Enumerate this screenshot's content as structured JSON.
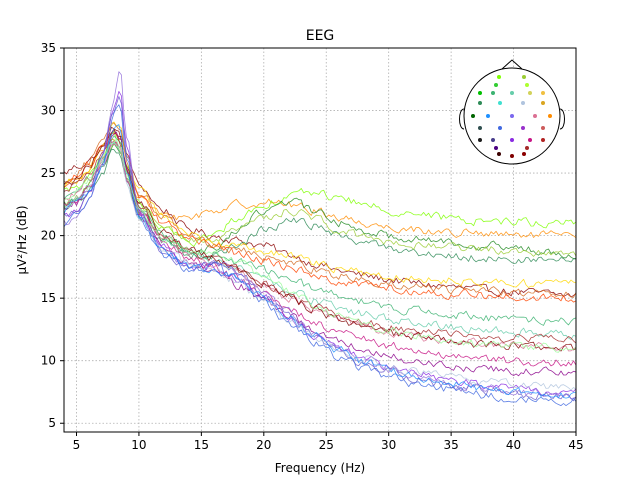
{
  "chart_data": {
    "type": "line",
    "title": "EEG",
    "xlabel": "Frequency (Hz)",
    "ylabel": "µV²/Hz (dB)",
    "xlim": [
      4,
      45
    ],
    "ylim": [
      4.3,
      35
    ],
    "xticks": [
      5,
      10,
      15,
      20,
      25,
      30,
      35,
      40,
      45
    ],
    "yticks": [
      5,
      10,
      15,
      20,
      25,
      30,
      35
    ],
    "grid": true,
    "x_shared": [
      4,
      5,
      6,
      7,
      8,
      8.5,
      9,
      10,
      12,
      14,
      16,
      18,
      20,
      22,
      24,
      26,
      28,
      30,
      32,
      34,
      36,
      38,
      40,
      42,
      45
    ],
    "series": [
      {
        "color": "#8B0000",
        "values": [
          25,
          25.5,
          26,
          27,
          28.5,
          28,
          26.5,
          24,
          22,
          20.5,
          20,
          19.6,
          19.2,
          18.5,
          17.8,
          17.2,
          16.8,
          16.5,
          16.2,
          16,
          15.8,
          15.6,
          15.5,
          15.4,
          15.2
        ]
      },
      {
        "color": "#FF8C00",
        "values": [
          24,
          24.5,
          25,
          26.5,
          28,
          27.5,
          25.5,
          23,
          21.5,
          21.5,
          22,
          22.5,
          22.7,
          22.5,
          22,
          21.5,
          21,
          20.7,
          20.5,
          20.3,
          20.2,
          20.1,
          20,
          20,
          20
        ]
      },
      {
        "color": "#7FFF00",
        "values": [
          23.5,
          24,
          24.8,
          26,
          28,
          27.5,
          25.5,
          22.5,
          20.5,
          19.5,
          20,
          21.5,
          22.5,
          23.2,
          23.5,
          23,
          22.5,
          22,
          21.8,
          21.5,
          21.2,
          21.2,
          21.2,
          21,
          21
        ]
      },
      {
        "color": "#228B22",
        "values": [
          22.5,
          23,
          24,
          25.5,
          27.5,
          27,
          24.5,
          22,
          20,
          18.8,
          19,
          20.5,
          22,
          22.8,
          22,
          21,
          20.5,
          20,
          19.8,
          19.6,
          19.4,
          19.2,
          19,
          18.8,
          18.6
        ]
      },
      {
        "color": "#2E8B57",
        "values": [
          22,
          22.5,
          23.5,
          25,
          27,
          26.5,
          24.5,
          21.5,
          19.5,
          18.5,
          18.5,
          19.2,
          20.5,
          21.2,
          20.8,
          20,
          19.5,
          19,
          18.7,
          18.5,
          18.3,
          18.2,
          18.1,
          18,
          18
        ]
      },
      {
        "color": "#9ACD32",
        "values": [
          22.5,
          23,
          24,
          25.5,
          27.5,
          27,
          25,
          22.5,
          20.5,
          19.5,
          19.5,
          20.5,
          21.5,
          22,
          21.5,
          20.5,
          20,
          19.6,
          19.3,
          19.2,
          19,
          18.9,
          18.8,
          18.7,
          18.6
        ]
      },
      {
        "color": "#FFD700",
        "values": [
          24,
          24.5,
          25.5,
          27,
          29,
          28.5,
          26,
          23.5,
          21.5,
          20,
          19.5,
          19.2,
          18.8,
          18.3,
          17.8,
          17.3,
          17,
          16.8,
          16.6,
          16.5,
          16.4,
          16.3,
          16.2,
          16.2,
          16.2
        ]
      },
      {
        "color": "#D2691E",
        "values": [
          24.5,
          25,
          26,
          27.5,
          29,
          28.5,
          26,
          23.5,
          21.5,
          20,
          19.3,
          18.8,
          18.3,
          17.8,
          17.3,
          16.8,
          16.5,
          16.2,
          16,
          15.8,
          15.6,
          15.5,
          15.4,
          15.4,
          15.3
        ]
      },
      {
        "color": "#FF4500",
        "values": [
          24,
          24.8,
          25.8,
          27,
          28.5,
          28,
          25.5,
          23,
          21,
          19.8,
          19.2,
          18.6,
          18,
          17.4,
          16.9,
          16.4,
          16,
          15.8,
          15.6,
          15.4,
          15.3,
          15.2,
          15.1,
          15,
          15
        ]
      },
      {
        "color": "#3CB371",
        "values": [
          23,
          23.5,
          24.5,
          26,
          27.8,
          27.5,
          25,
          22.3,
          20,
          18.8,
          18.3,
          17.8,
          17.2,
          16.5,
          15.8,
          15.2,
          14.7,
          14.3,
          14,
          13.8,
          13.6,
          13.4,
          13.3,
          13.2,
          13.1
        ]
      },
      {
        "color": "#66CDAA",
        "values": [
          22.5,
          23,
          24,
          25.5,
          27.5,
          27,
          24.5,
          21.8,
          19.5,
          18.5,
          18,
          17.3,
          16.5,
          15.6,
          14.8,
          14.2,
          13.7,
          13.3,
          13,
          12.8,
          12.6,
          12.4,
          12.3,
          12.2,
          12.1
        ]
      },
      {
        "color": "#DB7093",
        "values": [
          23,
          23.5,
          24.5,
          26,
          27.5,
          27,
          24.8,
          22,
          19.8,
          18.5,
          17.8,
          17,
          16,
          15,
          14,
          13.3,
          12.8,
          12.3,
          12,
          11.7,
          11.5,
          11.3,
          11.2,
          11.1,
          11
        ]
      },
      {
        "color": "#A52A2A",
        "values": [
          23.5,
          24,
          25,
          26.5,
          28,
          27.5,
          25,
          22.3,
          20,
          18.8,
          18,
          17.2,
          16.2,
          15.2,
          14.3,
          13.6,
          13.1,
          12.7,
          12.4,
          12.2,
          12,
          11.9,
          11.8,
          11.7,
          11.6
        ]
      },
      {
        "color": "#800000",
        "values": [
          24,
          24.5,
          25.5,
          27,
          28.5,
          28,
          25.5,
          22.6,
          20.2,
          19,
          18.2,
          17.3,
          16.2,
          15.1,
          14.1,
          13.3,
          12.7,
          12.2,
          11.9,
          11.6,
          11.4,
          11.2,
          11.1,
          11,
          10.9
        ]
      },
      {
        "color": "#C71585",
        "values": [
          22.5,
          23,
          24,
          25.5,
          27.5,
          27,
          24.5,
          21.8,
          19.5,
          18.2,
          17.5,
          16.5,
          15.3,
          14.1,
          13.1,
          12.3,
          11.7,
          11.2,
          10.8,
          10.5,
          10.3,
          10.1,
          10,
          9.9,
          9.8
        ]
      },
      {
        "color": "#8B008B",
        "values": [
          22,
          22.5,
          23.5,
          25.5,
          28.5,
          28,
          25,
          21.5,
          19,
          17.8,
          17,
          16,
          14.8,
          13.5,
          12.4,
          11.5,
          10.8,
          10.3,
          10,
          9.7,
          9.5,
          9.3,
          9.2,
          9.1,
          9
        ]
      },
      {
        "color": "#8A2BE2",
        "values": [
          21.5,
          22,
          23.5,
          26,
          30,
          31.5,
          27,
          22,
          19,
          17.5,
          17.5,
          16.5,
          15,
          13.5,
          12.1,
          11,
          10.2,
          9.5,
          9,
          8.6,
          8.3,
          8,
          7.8,
          7.6,
          7.4
        ]
      },
      {
        "color": "#9370DB",
        "values": [
          21,
          21.5,
          23,
          26,
          31,
          33.5,
          28,
          22,
          18.8,
          17.5,
          17.8,
          17,
          15.5,
          13.8,
          12.2,
          11,
          10,
          9.3,
          8.8,
          8.4,
          8,
          7.8,
          7.6,
          7.4,
          7.2
        ]
      },
      {
        "color": "#6A5ACD",
        "values": [
          21.5,
          22,
          23.5,
          26,
          30,
          31,
          26.5,
          21.8,
          18.8,
          17.5,
          17.8,
          17,
          15.3,
          13.6,
          12,
          10.8,
          9.8,
          9.1,
          8.6,
          8.2,
          7.9,
          7.6,
          7.4,
          7.2,
          7
        ]
      },
      {
        "color": "#4169E1",
        "values": [
          21,
          21.5,
          23,
          25.5,
          29.5,
          30.5,
          26,
          21.5,
          18.5,
          17.3,
          17.5,
          16.5,
          14.8,
          13,
          11.5,
          10.3,
          9.4,
          8.7,
          8.2,
          7.8,
          7.5,
          7.2,
          7,
          6.8,
          6.7
        ]
      },
      {
        "color": "#1E90FF",
        "values": [
          22,
          22.5,
          23.5,
          25.5,
          28.5,
          28.5,
          25,
          21.5,
          18.8,
          17.5,
          17.3,
          16.5,
          15,
          13.5,
          12,
          10.8,
          9.9,
          9.2,
          8.7,
          8.3,
          8,
          7.7,
          7.5,
          7.3,
          7.2
        ]
      },
      {
        "color": "#B0C4DE",
        "values": [
          22.5,
          23,
          24,
          25.5,
          27.5,
          27,
          24.5,
          21.5,
          19,
          17.8,
          17.3,
          16.3,
          14.8,
          13.3,
          12,
          11,
          10.2,
          9.6,
          9.1,
          8.8,
          8.5,
          8.3,
          8.1,
          8,
          7.9
        ]
      },
      {
        "color": "#98FB98",
        "values": [
          23,
          23.5,
          24.5,
          26,
          27.8,
          27.2,
          24.8,
          22,
          19.8,
          18.8,
          18.5,
          17.8,
          16.8,
          15.6,
          14.5,
          13.6,
          12.9,
          12.4,
          12,
          11.7,
          11.5,
          11.3,
          11.2,
          11.1,
          11
        ]
      }
    ]
  }
}
